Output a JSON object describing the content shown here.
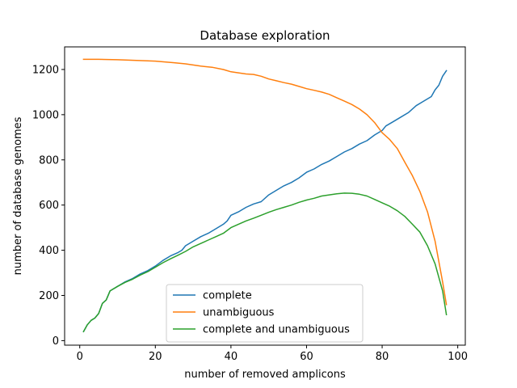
{
  "chart_data": {
    "type": "line",
    "title": "Database exploration",
    "xlabel": "number of removed amplicons",
    "ylabel": "number of database genomes",
    "xlim": [
      -4,
      102
    ],
    "ylim": [
      -20,
      1300
    ],
    "xticks": [
      0,
      20,
      40,
      60,
      80,
      100
    ],
    "yticks": [
      0,
      200,
      400,
      600,
      800,
      1000,
      1200
    ],
    "grid": false,
    "legend_position": "lower center",
    "series": [
      {
        "name": "complete",
        "color": "#1f77b4",
        "points": [
          [
            1,
            40
          ],
          [
            2,
            70
          ],
          [
            3,
            90
          ],
          [
            4,
            100
          ],
          [
            5,
            120
          ],
          [
            6,
            165
          ],
          [
            7,
            180
          ],
          [
            8,
            220
          ],
          [
            10,
            240
          ],
          [
            12,
            260
          ],
          [
            14,
            275
          ],
          [
            16,
            295
          ],
          [
            18,
            310
          ],
          [
            20,
            330
          ],
          [
            22,
            355
          ],
          [
            24,
            375
          ],
          [
            26,
            390
          ],
          [
            27,
            400
          ],
          [
            28,
            420
          ],
          [
            30,
            440
          ],
          [
            32,
            460
          ],
          [
            34,
            475
          ],
          [
            36,
            495
          ],
          [
            38,
            515
          ],
          [
            39,
            530
          ],
          [
            40,
            555
          ],
          [
            42,
            570
          ],
          [
            44,
            590
          ],
          [
            46,
            605
          ],
          [
            48,
            615
          ],
          [
            50,
            645
          ],
          [
            52,
            665
          ],
          [
            54,
            685
          ],
          [
            56,
            700
          ],
          [
            58,
            720
          ],
          [
            60,
            745
          ],
          [
            62,
            760
          ],
          [
            64,
            780
          ],
          [
            66,
            795
          ],
          [
            68,
            815
          ],
          [
            70,
            835
          ],
          [
            72,
            850
          ],
          [
            74,
            870
          ],
          [
            76,
            885
          ],
          [
            78,
            910
          ],
          [
            80,
            930
          ],
          [
            81,
            950
          ],
          [
            83,
            970
          ],
          [
            85,
            990
          ],
          [
            87,
            1010
          ],
          [
            89,
            1040
          ],
          [
            91,
            1060
          ],
          [
            93,
            1080
          ],
          [
            94,
            1110
          ],
          [
            95,
            1130
          ],
          [
            96,
            1170
          ],
          [
            97,
            1195
          ]
        ]
      },
      {
        "name": "unambiguous",
        "color": "#ff7f0e",
        "points": [
          [
            1,
            1245
          ],
          [
            5,
            1245
          ],
          [
            10,
            1243
          ],
          [
            15,
            1240
          ],
          [
            20,
            1237
          ],
          [
            25,
            1230
          ],
          [
            28,
            1225
          ],
          [
            30,
            1220
          ],
          [
            32,
            1215
          ],
          [
            35,
            1210
          ],
          [
            38,
            1200
          ],
          [
            40,
            1190
          ],
          [
            42,
            1185
          ],
          [
            44,
            1180
          ],
          [
            46,
            1178
          ],
          [
            48,
            1170
          ],
          [
            50,
            1158
          ],
          [
            52,
            1150
          ],
          [
            54,
            1142
          ],
          [
            56,
            1135
          ],
          [
            58,
            1125
          ],
          [
            60,
            1115
          ],
          [
            62,
            1108
          ],
          [
            64,
            1100
          ],
          [
            66,
            1090
          ],
          [
            68,
            1075
          ],
          [
            70,
            1060
          ],
          [
            72,
            1045
          ],
          [
            74,
            1025
          ],
          [
            76,
            1000
          ],
          [
            78,
            965
          ],
          [
            80,
            920
          ],
          [
            82,
            890
          ],
          [
            84,
            850
          ],
          [
            86,
            790
          ],
          [
            88,
            730
          ],
          [
            90,
            660
          ],
          [
            92,
            570
          ],
          [
            94,
            440
          ],
          [
            96,
            260
          ],
          [
            97,
            160
          ]
        ]
      },
      {
        "name": "complete and unambiguous",
        "color": "#2ca02c",
        "points": [
          [
            1,
            40
          ],
          [
            2,
            70
          ],
          [
            3,
            90
          ],
          [
            4,
            100
          ],
          [
            5,
            120
          ],
          [
            6,
            165
          ],
          [
            7,
            180
          ],
          [
            8,
            220
          ],
          [
            10,
            240
          ],
          [
            12,
            258
          ],
          [
            14,
            272
          ],
          [
            16,
            290
          ],
          [
            18,
            305
          ],
          [
            20,
            325
          ],
          [
            22,
            345
          ],
          [
            24,
            362
          ],
          [
            26,
            378
          ],
          [
            28,
            395
          ],
          [
            30,
            415
          ],
          [
            32,
            430
          ],
          [
            34,
            445
          ],
          [
            36,
            460
          ],
          [
            38,
            475
          ],
          [
            40,
            500
          ],
          [
            42,
            515
          ],
          [
            44,
            530
          ],
          [
            46,
            542
          ],
          [
            48,
            555
          ],
          [
            50,
            568
          ],
          [
            52,
            580
          ],
          [
            54,
            590
          ],
          [
            56,
            600
          ],
          [
            58,
            612
          ],
          [
            60,
            622
          ],
          [
            62,
            630
          ],
          [
            64,
            640
          ],
          [
            66,
            645
          ],
          [
            68,
            650
          ],
          [
            70,
            653
          ],
          [
            72,
            652
          ],
          [
            74,
            648
          ],
          [
            76,
            640
          ],
          [
            78,
            625
          ],
          [
            80,
            610
          ],
          [
            82,
            595
          ],
          [
            84,
            575
          ],
          [
            86,
            550
          ],
          [
            88,
            515
          ],
          [
            90,
            480
          ],
          [
            92,
            420
          ],
          [
            94,
            340
          ],
          [
            96,
            220
          ],
          [
            97,
            115
          ]
        ]
      }
    ]
  }
}
